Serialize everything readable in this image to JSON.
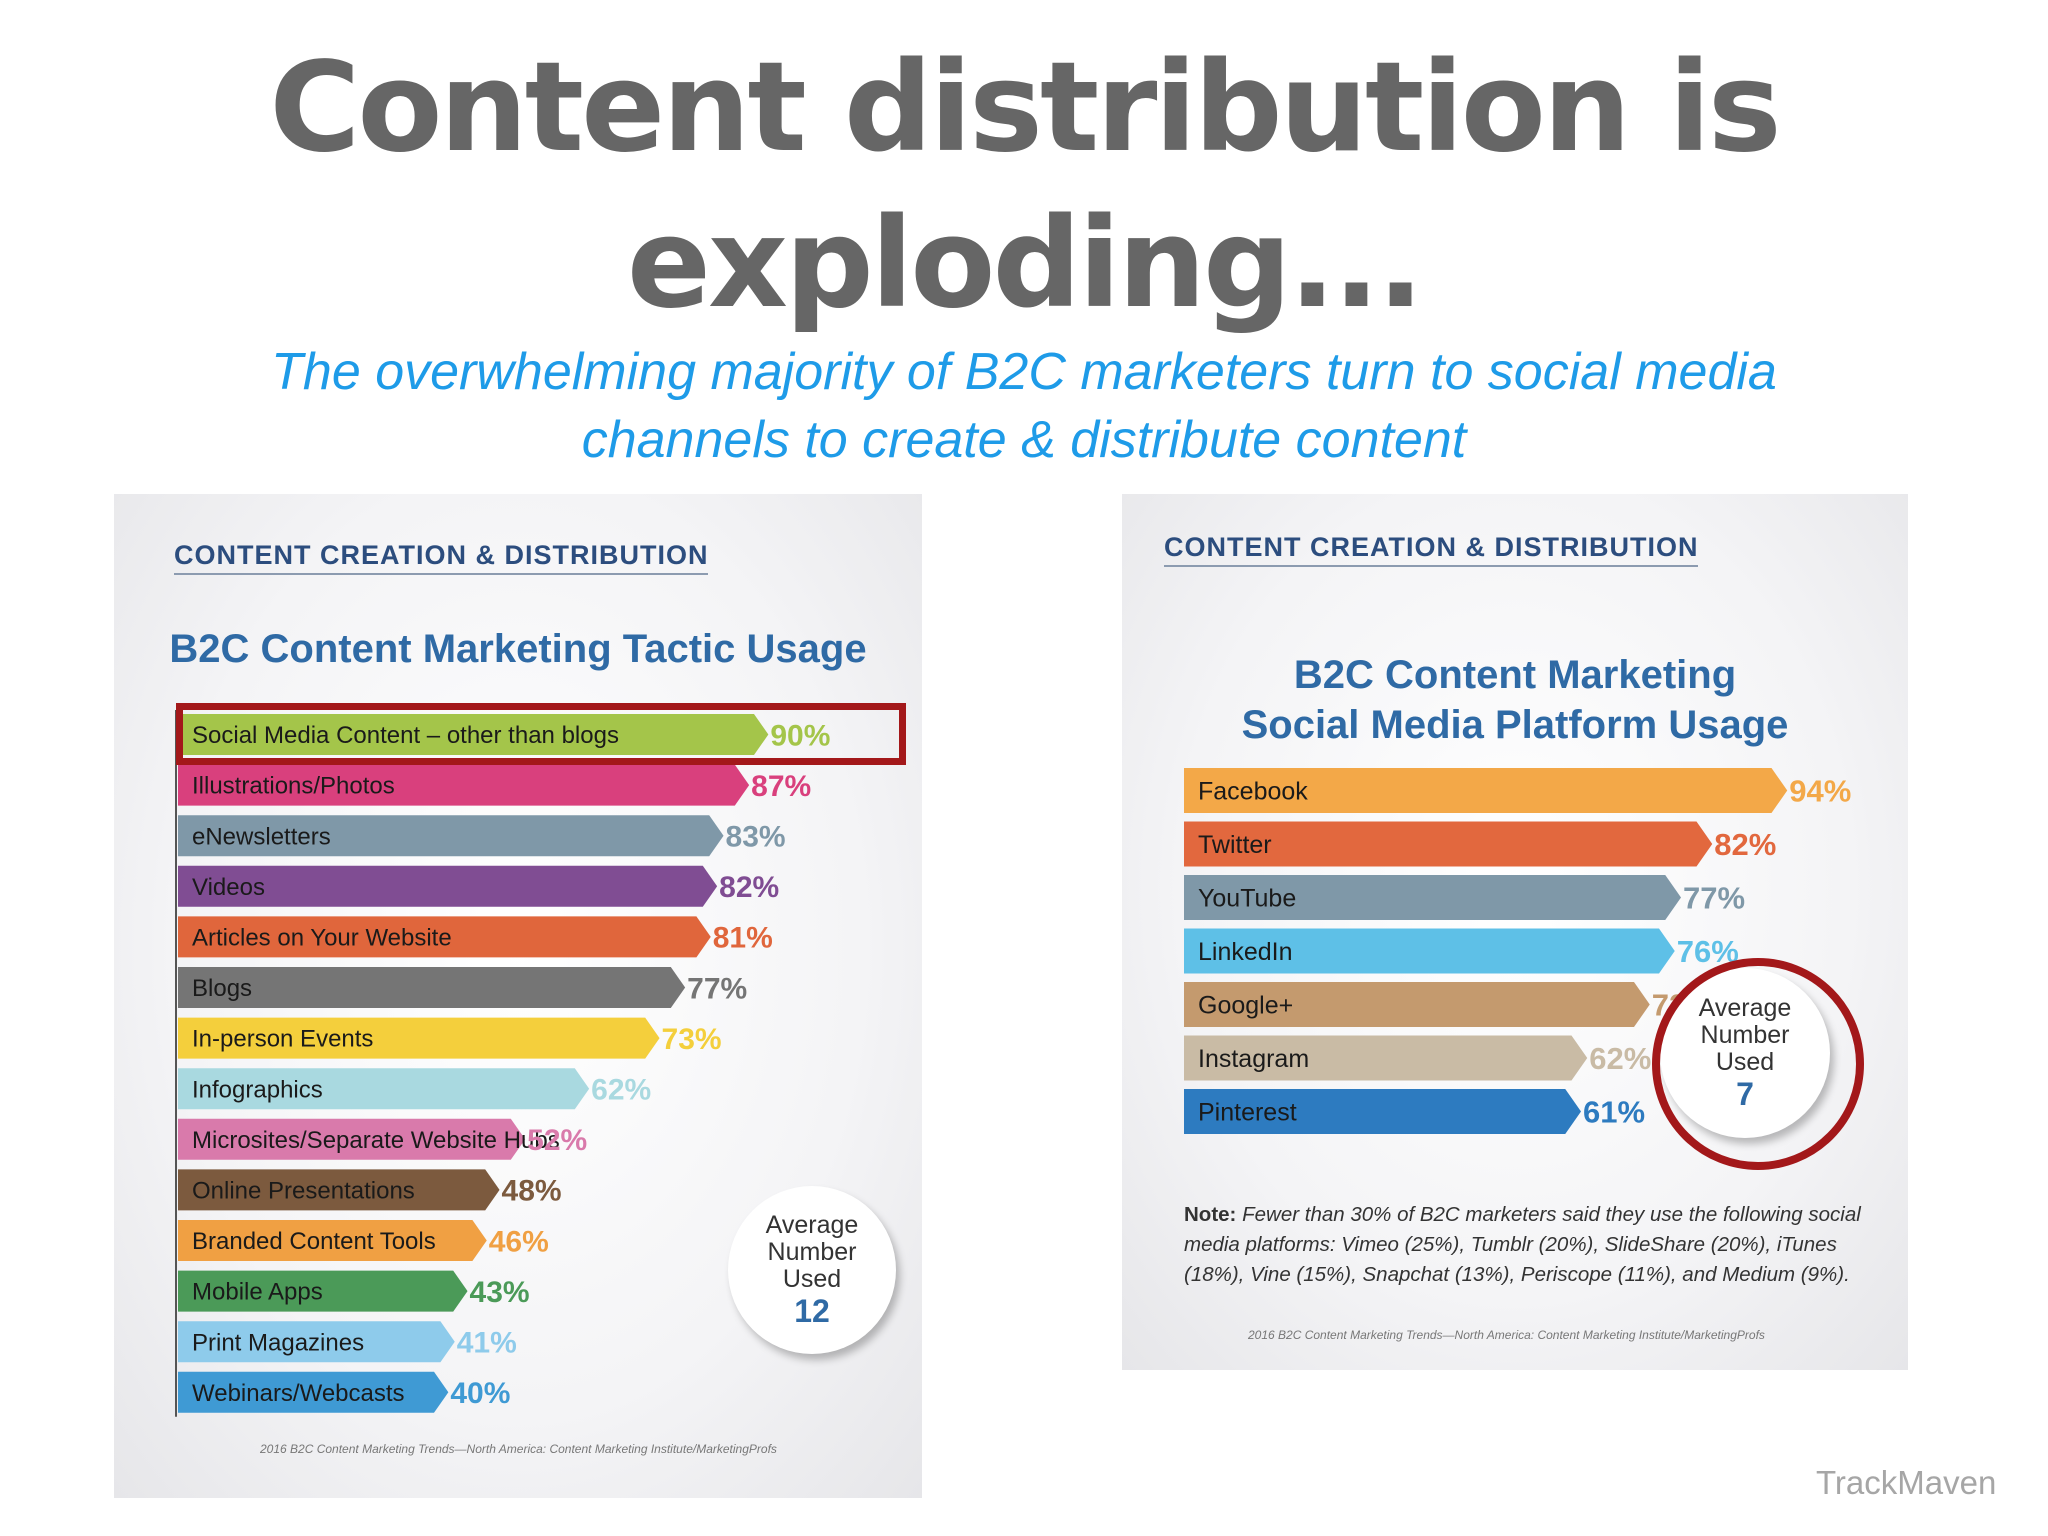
{
  "title": {
    "line1": "Content distribution is",
    "line2": "exploding..."
  },
  "subtitle": {
    "line1": "The overwhelming majority of B2C marketers turn to social media",
    "line2": "channels to create & distribute content"
  },
  "watermark": "TrackMaven",
  "highlight_color": "#a3181a",
  "left_panel": {
    "section": "CONTENT CREATION & DISTRIBUTION",
    "average": {
      "line1": "Average",
      "line2": "Number",
      "line3": "Used",
      "value": "12"
    },
    "source": "2016 B2C Content Marketing Trends—North America: Content Marketing Institute/MarketingProfs"
  },
  "right_panel": {
    "section": "CONTENT CREATION & DISTRIBUTION",
    "average": {
      "line1": "Average",
      "line2": "Number",
      "line3": "Used",
      "value": "7"
    },
    "note_label": "Note:",
    "note": "Fewer than 30% of B2C marketers said they use the following social media platforms: Vimeo (25%), Tumblr (20%), SlideShare (20%), iTunes (18%), Vine (15%), Snapchat (13%), Periscope (11%), and Medium (9%).",
    "source": "2016 B2C Content Marketing Trends—North America: Content Marketing Institute/MarketingProfs"
  },
  "chart_data": [
    {
      "type": "bar",
      "orientation": "horizontal",
      "title": "B2C Content Marketing Tactic Usage",
      "categories": [
        "Social Media Content – other than blogs",
        "Illustrations/Photos",
        "eNewsletters",
        "Videos",
        "Articles on Your Website",
        "Blogs",
        "In-person Events",
        "Infographics",
        "Microsites/Separate Website Hubs",
        "Online Presentations",
        "Branded Content Tools",
        "Mobile Apps",
        "Print Magazines",
        "Webinars/Webcasts"
      ],
      "values": [
        90,
        87,
        83,
        82,
        81,
        77,
        73,
        62,
        52,
        48,
        46,
        43,
        41,
        40
      ],
      "value_labels": [
        "90%",
        "87%",
        "83%",
        "82%",
        "81%",
        "77%",
        "73%",
        "62%",
        "52%",
        "48%",
        "46%",
        "43%",
        "41%",
        "40%"
      ],
      "colors": [
        "#a4c54a",
        "#d9407d",
        "#7f98a8",
        "#804d93",
        "#e0663c",
        "#757575",
        "#f4cf3c",
        "#a9d9e0",
        "#d97aab",
        "#7c5a3e",
        "#f0a043",
        "#4b9a58",
        "#8ecbeb",
        "#3f9ad4"
      ],
      "highlighted": "Social Media Content – other than blogs",
      "xlim": [
        0,
        100
      ]
    },
    {
      "type": "bar",
      "orientation": "horizontal",
      "title": "B2C Content Marketing Social Media Platform Usage",
      "categories": [
        "Facebook",
        "Twitter",
        "YouTube",
        "LinkedIn",
        "Google+",
        "Instagram",
        "Pinterest"
      ],
      "values": [
        94,
        82,
        77,
        76,
        72,
        62,
        61
      ],
      "value_labels": [
        "94%",
        "82%",
        "77%",
        "76%",
        "72%",
        "62%",
        "61%"
      ],
      "colors": [
        "#f3a848",
        "#e2683e",
        "#7f98a8",
        "#5ec0e7",
        "#c49a6e",
        "#c9bba5",
        "#2d7bc0"
      ],
      "xlim": [
        0,
        100
      ]
    }
  ]
}
